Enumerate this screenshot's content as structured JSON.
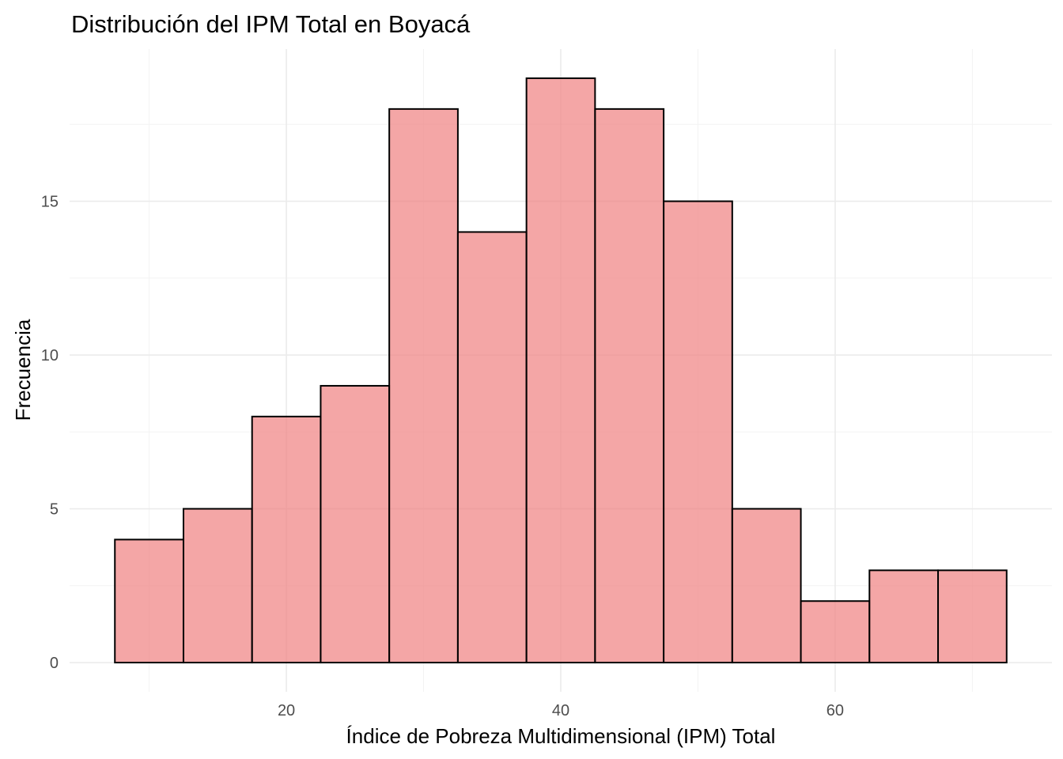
{
  "chart_data": {
    "type": "bar",
    "title": "Distribución del IPM Total en Boyacá",
    "xlabel": "Índice de Pobreza Multidimensional (IPM) Total",
    "ylabel": "Frecuencia",
    "bins": [
      {
        "x0": 7.5,
        "x1": 12.5,
        "count": 4
      },
      {
        "x0": 12.5,
        "x1": 17.5,
        "count": 5
      },
      {
        "x0": 17.5,
        "x1": 22.5,
        "count": 8
      },
      {
        "x0": 22.5,
        "x1": 27.5,
        "count": 9
      },
      {
        "x0": 27.5,
        "x1": 32.5,
        "count": 18
      },
      {
        "x0": 32.5,
        "x1": 37.5,
        "count": 14
      },
      {
        "x0": 37.5,
        "x1": 42.5,
        "count": 19
      },
      {
        "x0": 42.5,
        "x1": 47.5,
        "count": 18
      },
      {
        "x0": 47.5,
        "x1": 52.5,
        "count": 15
      },
      {
        "x0": 52.5,
        "x1": 57.5,
        "count": 5
      },
      {
        "x0": 57.5,
        "x1": 62.5,
        "count": 2
      },
      {
        "x0": 62.5,
        "x1": 67.5,
        "count": 3
      },
      {
        "x0": 67.5,
        "x1": 72.5,
        "count": 3
      }
    ],
    "xlim": [
      4.2,
      75.8
    ],
    "ylim": [
      -0.95,
      19.95
    ],
    "x_ticks": [
      20,
      40,
      60
    ],
    "y_ticks": [
      0,
      5,
      10,
      15
    ],
    "x_tick_labels": [
      "20",
      "40",
      "60"
    ],
    "y_tick_labels": [
      "0",
      "5",
      "10",
      "15"
    ],
    "grid": true,
    "fill_color": "#F08080",
    "fill_opacity": 0.7,
    "outline_color": "#000000"
  }
}
